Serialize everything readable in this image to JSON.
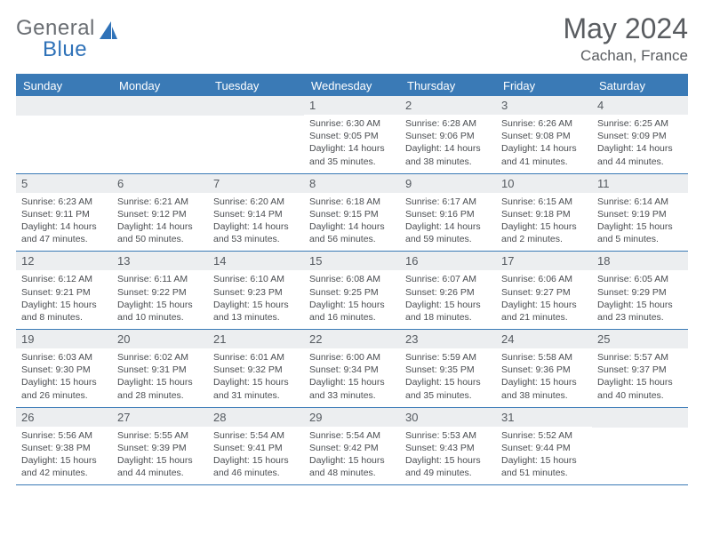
{
  "brand": {
    "top": "General",
    "bottom": "Blue"
  },
  "title": "May 2024",
  "subtitle": "Cachan, France",
  "colors": {
    "header_blue": "#3a7ab6",
    "daynum_bg": "#eceef0",
    "text_gray": "#595c60",
    "brand_blue": "#2f72b8",
    "brand_gray": "#6a6e73"
  },
  "dow": [
    "Sunday",
    "Monday",
    "Tuesday",
    "Wednesday",
    "Thursday",
    "Friday",
    "Saturday"
  ],
  "weeks": [
    [
      null,
      null,
      null,
      {
        "n": "1",
        "sunrise": "6:30 AM",
        "sunset": "9:05 PM",
        "dl1": "Daylight: 14 hours",
        "dl2": "and 35 minutes."
      },
      {
        "n": "2",
        "sunrise": "6:28 AM",
        "sunset": "9:06 PM",
        "dl1": "Daylight: 14 hours",
        "dl2": "and 38 minutes."
      },
      {
        "n": "3",
        "sunrise": "6:26 AM",
        "sunset": "9:08 PM",
        "dl1": "Daylight: 14 hours",
        "dl2": "and 41 minutes."
      },
      {
        "n": "4",
        "sunrise": "6:25 AM",
        "sunset": "9:09 PM",
        "dl1": "Daylight: 14 hours",
        "dl2": "and 44 minutes."
      }
    ],
    [
      {
        "n": "5",
        "sunrise": "6:23 AM",
        "sunset": "9:11 PM",
        "dl1": "Daylight: 14 hours",
        "dl2": "and 47 minutes."
      },
      {
        "n": "6",
        "sunrise": "6:21 AM",
        "sunset": "9:12 PM",
        "dl1": "Daylight: 14 hours",
        "dl2": "and 50 minutes."
      },
      {
        "n": "7",
        "sunrise": "6:20 AM",
        "sunset": "9:14 PM",
        "dl1": "Daylight: 14 hours",
        "dl2": "and 53 minutes."
      },
      {
        "n": "8",
        "sunrise": "6:18 AM",
        "sunset": "9:15 PM",
        "dl1": "Daylight: 14 hours",
        "dl2": "and 56 minutes."
      },
      {
        "n": "9",
        "sunrise": "6:17 AM",
        "sunset": "9:16 PM",
        "dl1": "Daylight: 14 hours",
        "dl2": "and 59 minutes."
      },
      {
        "n": "10",
        "sunrise": "6:15 AM",
        "sunset": "9:18 PM",
        "dl1": "Daylight: 15 hours",
        "dl2": "and 2 minutes."
      },
      {
        "n": "11",
        "sunrise": "6:14 AM",
        "sunset": "9:19 PM",
        "dl1": "Daylight: 15 hours",
        "dl2": "and 5 minutes."
      }
    ],
    [
      {
        "n": "12",
        "sunrise": "6:12 AM",
        "sunset": "9:21 PM",
        "dl1": "Daylight: 15 hours",
        "dl2": "and 8 minutes."
      },
      {
        "n": "13",
        "sunrise": "6:11 AM",
        "sunset": "9:22 PM",
        "dl1": "Daylight: 15 hours",
        "dl2": "and 10 minutes."
      },
      {
        "n": "14",
        "sunrise": "6:10 AM",
        "sunset": "9:23 PM",
        "dl1": "Daylight: 15 hours",
        "dl2": "and 13 minutes."
      },
      {
        "n": "15",
        "sunrise": "6:08 AM",
        "sunset": "9:25 PM",
        "dl1": "Daylight: 15 hours",
        "dl2": "and 16 minutes."
      },
      {
        "n": "16",
        "sunrise": "6:07 AM",
        "sunset": "9:26 PM",
        "dl1": "Daylight: 15 hours",
        "dl2": "and 18 minutes."
      },
      {
        "n": "17",
        "sunrise": "6:06 AM",
        "sunset": "9:27 PM",
        "dl1": "Daylight: 15 hours",
        "dl2": "and 21 minutes."
      },
      {
        "n": "18",
        "sunrise": "6:05 AM",
        "sunset": "9:29 PM",
        "dl1": "Daylight: 15 hours",
        "dl2": "and 23 minutes."
      }
    ],
    [
      {
        "n": "19",
        "sunrise": "6:03 AM",
        "sunset": "9:30 PM",
        "dl1": "Daylight: 15 hours",
        "dl2": "and 26 minutes."
      },
      {
        "n": "20",
        "sunrise": "6:02 AM",
        "sunset": "9:31 PM",
        "dl1": "Daylight: 15 hours",
        "dl2": "and 28 minutes."
      },
      {
        "n": "21",
        "sunrise": "6:01 AM",
        "sunset": "9:32 PM",
        "dl1": "Daylight: 15 hours",
        "dl2": "and 31 minutes."
      },
      {
        "n": "22",
        "sunrise": "6:00 AM",
        "sunset": "9:34 PM",
        "dl1": "Daylight: 15 hours",
        "dl2": "and 33 minutes."
      },
      {
        "n": "23",
        "sunrise": "5:59 AM",
        "sunset": "9:35 PM",
        "dl1": "Daylight: 15 hours",
        "dl2": "and 35 minutes."
      },
      {
        "n": "24",
        "sunrise": "5:58 AM",
        "sunset": "9:36 PM",
        "dl1": "Daylight: 15 hours",
        "dl2": "and 38 minutes."
      },
      {
        "n": "25",
        "sunrise": "5:57 AM",
        "sunset": "9:37 PM",
        "dl1": "Daylight: 15 hours",
        "dl2": "and 40 minutes."
      }
    ],
    [
      {
        "n": "26",
        "sunrise": "5:56 AM",
        "sunset": "9:38 PM",
        "dl1": "Daylight: 15 hours",
        "dl2": "and 42 minutes."
      },
      {
        "n": "27",
        "sunrise": "5:55 AM",
        "sunset": "9:39 PM",
        "dl1": "Daylight: 15 hours",
        "dl2": "and 44 minutes."
      },
      {
        "n": "28",
        "sunrise": "5:54 AM",
        "sunset": "9:41 PM",
        "dl1": "Daylight: 15 hours",
        "dl2": "and 46 minutes."
      },
      {
        "n": "29",
        "sunrise": "5:54 AM",
        "sunset": "9:42 PM",
        "dl1": "Daylight: 15 hours",
        "dl2": "and 48 minutes."
      },
      {
        "n": "30",
        "sunrise": "5:53 AM",
        "sunset": "9:43 PM",
        "dl1": "Daylight: 15 hours",
        "dl2": "and 49 minutes."
      },
      {
        "n": "31",
        "sunrise": "5:52 AM",
        "sunset": "9:44 PM",
        "dl1": "Daylight: 15 hours",
        "dl2": "and 51 minutes."
      },
      null
    ]
  ],
  "labels": {
    "sunrise_prefix": "Sunrise: ",
    "sunset_prefix": "Sunset: "
  }
}
